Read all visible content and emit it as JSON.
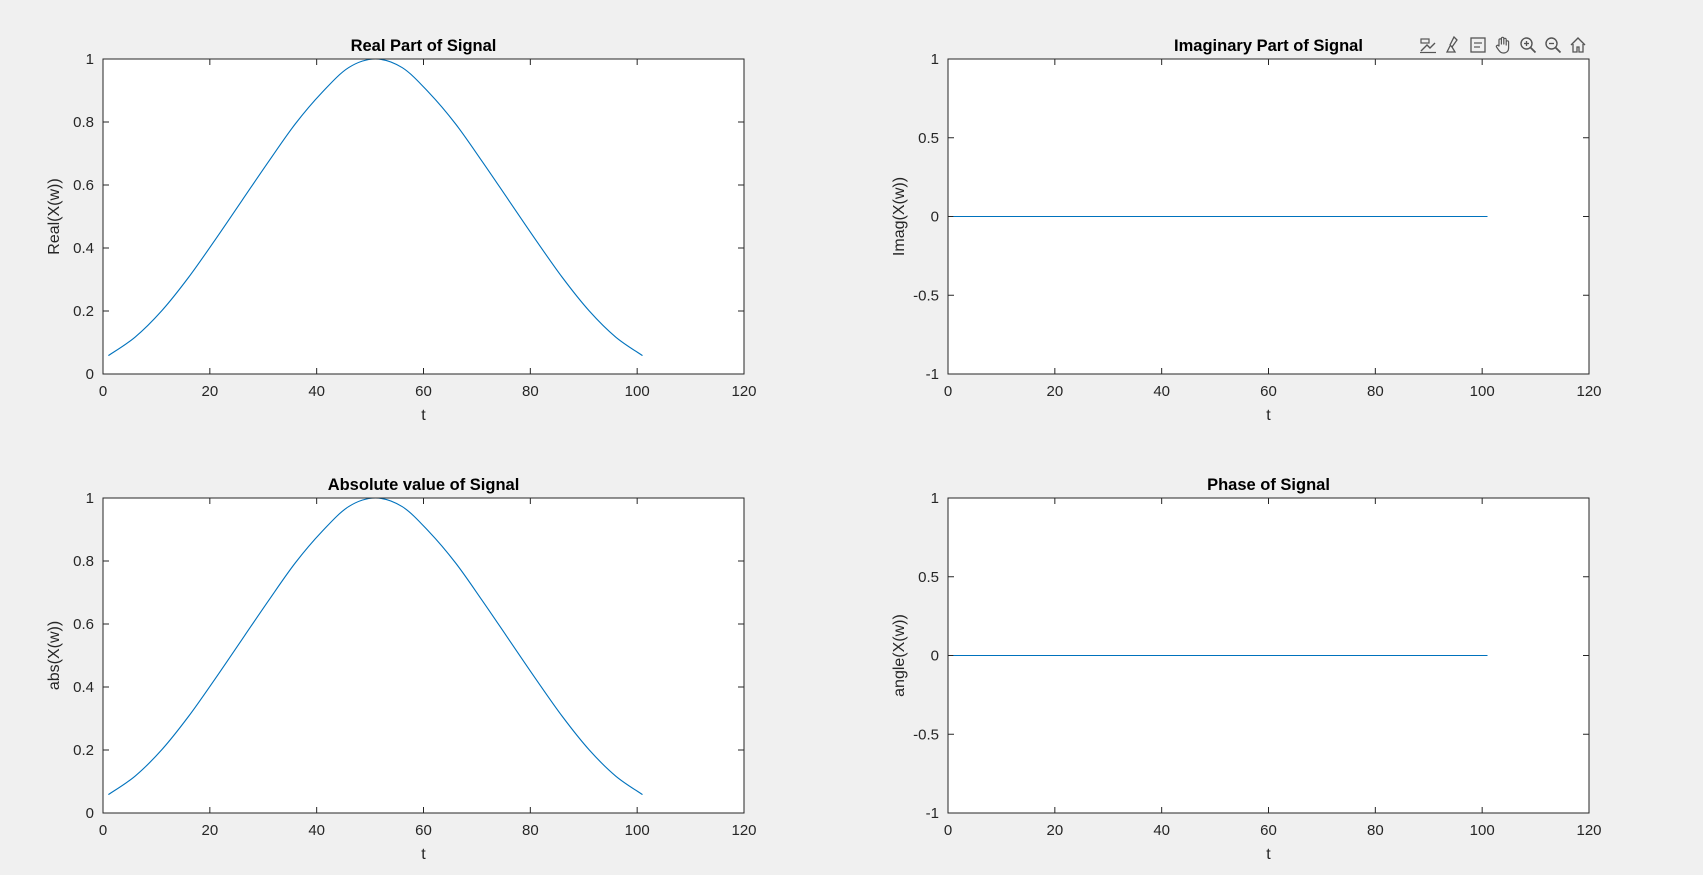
{
  "figure": {
    "background": "#f0f0f0",
    "line_color": "#0072bd",
    "axes_color": "#262626"
  },
  "toolbar": {
    "buttons": [
      {
        "name": "data-tips-icon"
      },
      {
        "name": "brush-icon"
      },
      {
        "name": "restore-view-icon"
      },
      {
        "name": "pan-hand-icon"
      },
      {
        "name": "zoom-in-icon"
      },
      {
        "name": "zoom-out-icon"
      },
      {
        "name": "home-icon"
      }
    ]
  },
  "chart_data": [
    {
      "type": "line",
      "title": "Real Part of Signal",
      "xlabel": "t",
      "ylabel": "Real(X(w))",
      "xlim": [
        0,
        120
      ],
      "ylim": [
        0,
        1
      ],
      "xticks": [
        "0",
        "20",
        "40",
        "60",
        "80",
        "100",
        "120"
      ],
      "yticks": [
        "0",
        "0.2",
        "0.4",
        "0.6",
        "0.8",
        "1"
      ],
      "series": [
        {
          "x": [
            1,
            6,
            11,
            16,
            21,
            26,
            31,
            36,
            41,
            46,
            51,
            56,
            61,
            66,
            71,
            76,
            81,
            86,
            91,
            96,
            101
          ],
          "y": [
            0.0585,
            0.117,
            0.2008,
            0.3063,
            0.4261,
            0.5503,
            0.6744,
            0.794,
            0.8936,
            0.9728,
            1.0,
            0.9728,
            0.8936,
            0.794,
            0.6744,
            0.5503,
            0.4261,
            0.3063,
            0.2008,
            0.117,
            0.0585
          ]
        }
      ]
    },
    {
      "type": "line",
      "title": "Imaginary Part of Signal",
      "xlabel": "t",
      "ylabel": "Imag(X(w))",
      "xlim": [
        0,
        120
      ],
      "ylim": [
        -1,
        1
      ],
      "xticks": [
        "0",
        "20",
        "40",
        "60",
        "80",
        "100",
        "120"
      ],
      "yticks": [
        "-1",
        "-0.5",
        "0",
        "0.5",
        "1"
      ],
      "series": [
        {
          "x": [
            1,
            101
          ],
          "y": [
            0,
            0
          ]
        }
      ]
    },
    {
      "type": "line",
      "title": "Absolute value of Signal",
      "xlabel": "t",
      "ylabel": "abs(X(w))",
      "xlim": [
        0,
        120
      ],
      "ylim": [
        0,
        1
      ],
      "xticks": [
        "0",
        "20",
        "40",
        "60",
        "80",
        "100",
        "120"
      ],
      "yticks": [
        "0",
        "0.2",
        "0.4",
        "0.6",
        "0.8",
        "1"
      ],
      "series": [
        {
          "x": [
            1,
            6,
            11,
            16,
            21,
            26,
            31,
            36,
            41,
            46,
            51,
            56,
            61,
            66,
            71,
            76,
            81,
            86,
            91,
            96,
            101
          ],
          "y": [
            0.0585,
            0.117,
            0.2008,
            0.3063,
            0.4261,
            0.5503,
            0.6744,
            0.794,
            0.8936,
            0.9728,
            1.0,
            0.9728,
            0.8936,
            0.794,
            0.6744,
            0.5503,
            0.4261,
            0.3063,
            0.2008,
            0.117,
            0.0585
          ]
        }
      ]
    },
    {
      "type": "line",
      "title": "Phase of Signal",
      "xlabel": "t",
      "ylabel": "angle(X(w))",
      "xlim": [
        0,
        120
      ],
      "ylim": [
        -1,
        1
      ],
      "xticks": [
        "0",
        "20",
        "40",
        "60",
        "80",
        "100",
        "120"
      ],
      "yticks": [
        "-1",
        "-0.5",
        "0",
        "0.5",
        "1"
      ],
      "series": [
        {
          "x": [
            1,
            101
          ],
          "y": [
            0,
            0
          ]
        }
      ]
    }
  ]
}
